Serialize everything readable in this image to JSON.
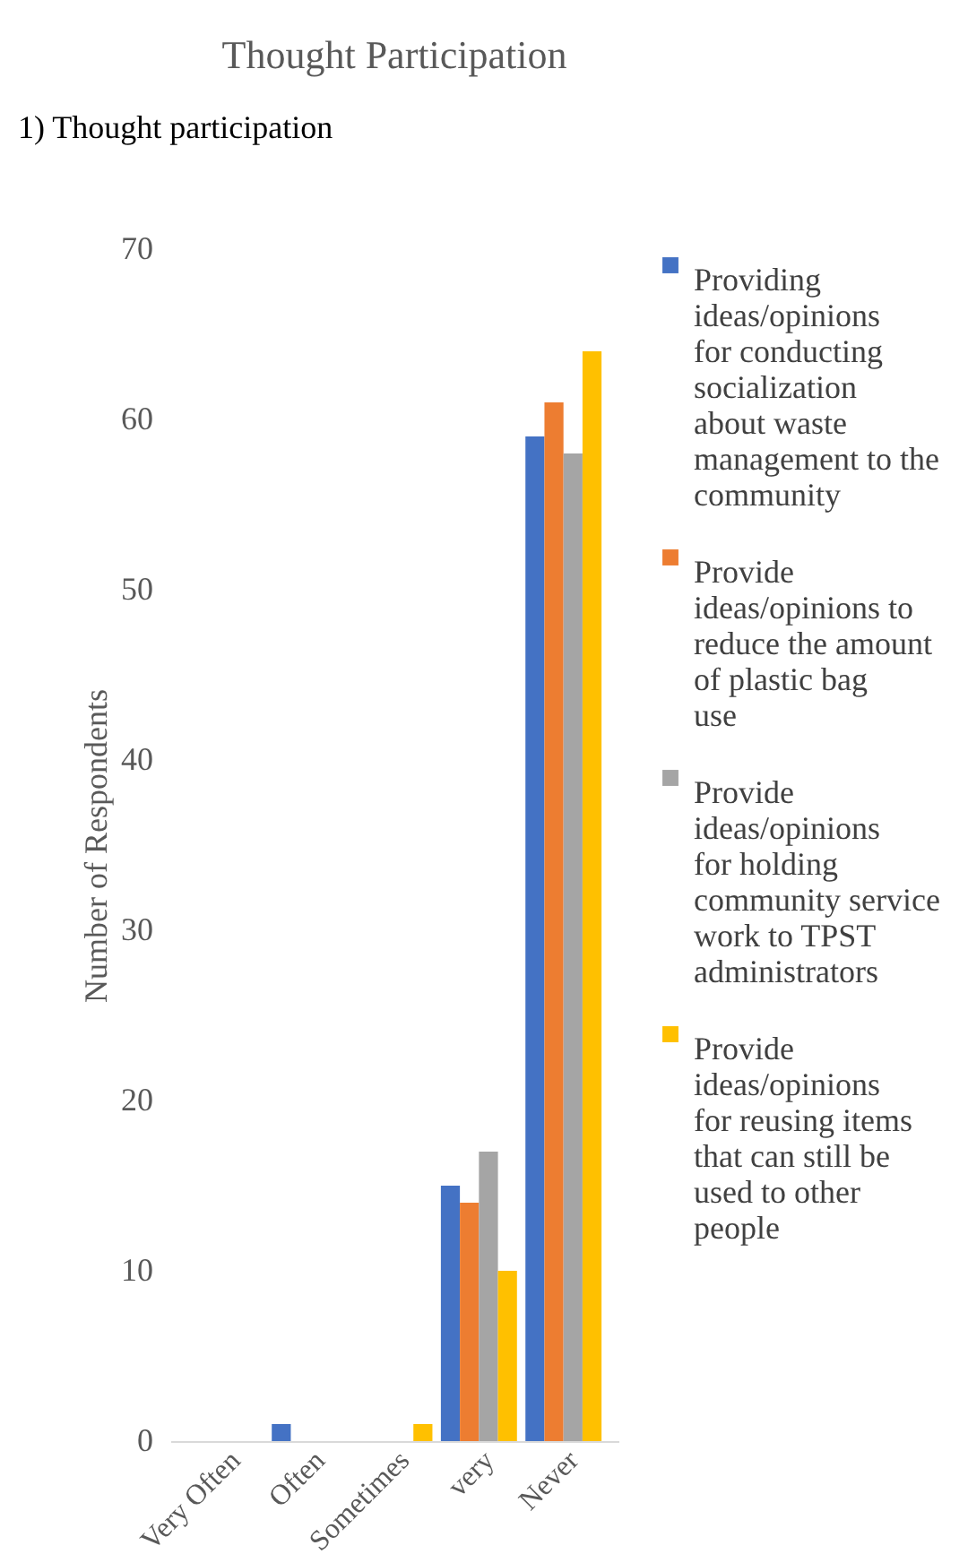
{
  "chart_data": {
    "type": "bar",
    "title": "Thought Participation",
    "ylabel": "Number of Respondents",
    "categories": [
      "Very Often",
      "Often",
      "Sometimes",
      "very",
      "Never"
    ],
    "series": [
      {
        "name": "Providing ideas/opinions for conducting socialization about waste management to the community",
        "color": "#4472c4",
        "values": [
          0,
          1,
          0,
          15,
          59
        ]
      },
      {
        "name": "Provide ideas/opinions to reduce the amount of plastic bag use",
        "color": "#ed7d31",
        "values": [
          0,
          0,
          0,
          14,
          61
        ]
      },
      {
        "name": "Provide ideas/opinions for holding community service work to TPST administrators",
        "color": "#a5a5a5",
        "values": [
          0,
          0,
          0,
          17,
          58
        ]
      },
      {
        "name": "Provide ideas/opinions for reusing items that can still be used to other people",
        "color": "#ffc000",
        "values": [
          0,
          0,
          1,
          10,
          64
        ]
      }
    ],
    "ylim": [
      0,
      70
    ],
    "yticks": [
      0,
      10,
      20,
      30,
      40,
      50,
      60,
      70
    ],
    "grid": false,
    "legend": "right",
    "annotations": [
      "1)   Thought participation"
    ]
  }
}
